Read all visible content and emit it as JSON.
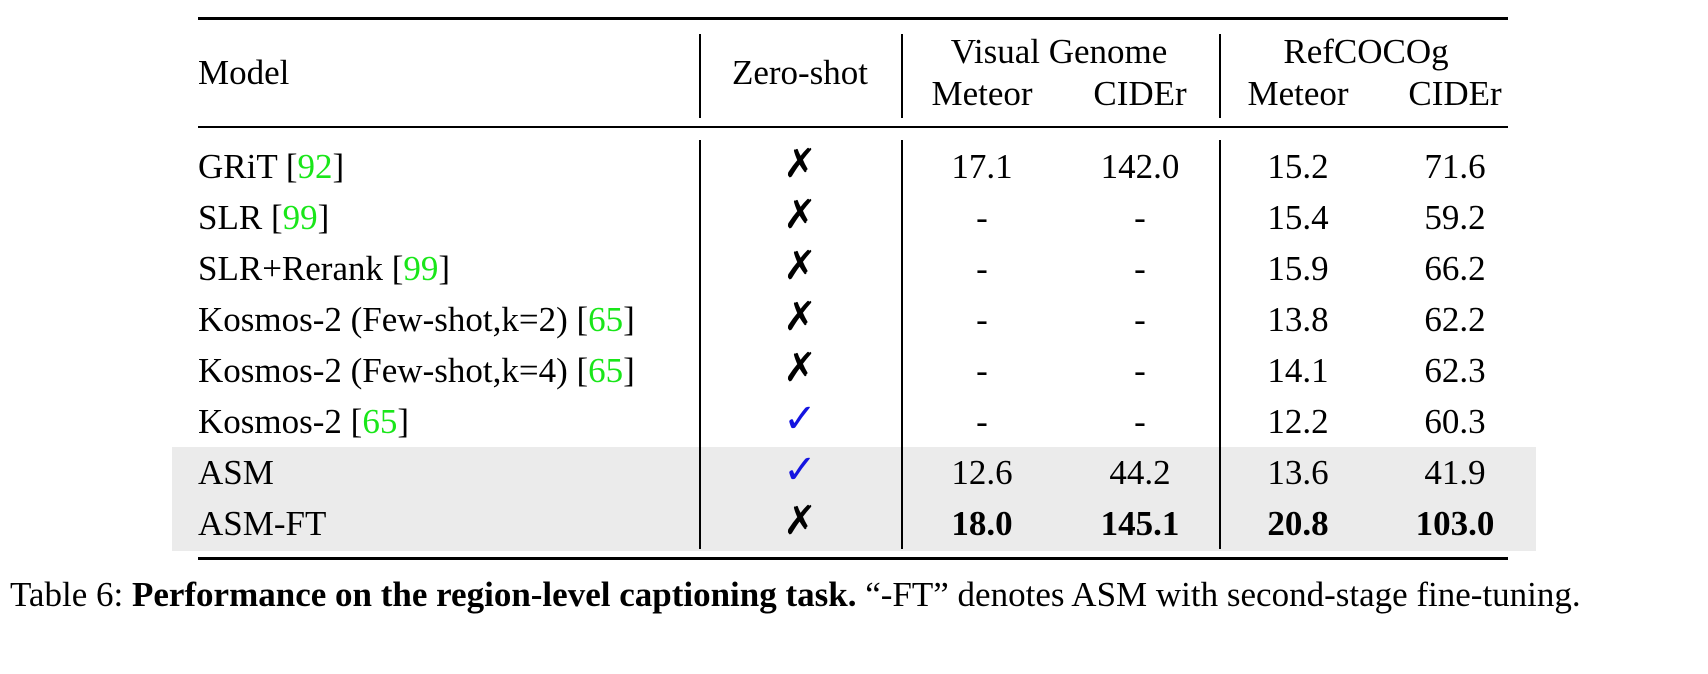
{
  "header": {
    "model": "Model",
    "zero_shot": "Zero-shot",
    "group_vg": "Visual Genome",
    "group_ref": "RefCOCOg",
    "meteor_vg": "Meteor",
    "cider_vg": "CIDEr",
    "meteor_ref": "Meteor",
    "cider_ref": "CIDEr"
  },
  "rows": [
    {
      "model": "GRiT [",
      "cite": "92",
      "close": "]",
      "zs": "✗",
      "vg_meteor": "17.1",
      "vg_cider": "142.0",
      "ref_meteor": "15.2",
      "ref_cider": "71.6"
    },
    {
      "model": "SLR [",
      "cite": "99",
      "close": "]",
      "zs": "✗",
      "vg_meteor": "-",
      "vg_cider": "-",
      "ref_meteor": "15.4",
      "ref_cider": "59.2"
    },
    {
      "model": "SLR+Rerank [",
      "cite": "99",
      "close": "]",
      "zs": "✗",
      "vg_meteor": "-",
      "vg_cider": "-",
      "ref_meteor": "15.9",
      "ref_cider": "66.2"
    },
    {
      "model": "Kosmos-2 (Few-shot,k=2) [",
      "cite": "65",
      "close": "]",
      "zs": "✗",
      "vg_meteor": "-",
      "vg_cider": "-",
      "ref_meteor": "13.8",
      "ref_cider": "62.2"
    },
    {
      "model": "Kosmos-2 (Few-shot,k=4) [",
      "cite": "65",
      "close": "]",
      "zs": "✗",
      "vg_meteor": "-",
      "vg_cider": "-",
      "ref_meteor": "14.1",
      "ref_cider": "62.3"
    },
    {
      "model": "Kosmos-2 [",
      "cite": "65",
      "close": "]",
      "zs": "✓",
      "vg_meteor": "-",
      "vg_cider": "-",
      "ref_meteor": "12.2",
      "ref_cider": "60.3"
    },
    {
      "model": "ASM",
      "cite": "",
      "close": "",
      "zs": "✓",
      "vg_meteor": "12.6",
      "vg_cider": "44.2",
      "ref_meteor": "13.6",
      "ref_cider": "41.9"
    },
    {
      "model": "ASM-FT",
      "cite": "",
      "close": "",
      "zs": "✗",
      "vg_meteor": "18.0",
      "vg_cider": "145.1",
      "ref_meteor": "20.8",
      "ref_cider": "103.0"
    }
  ],
  "caption": {
    "label": "Table 6: ",
    "bold": "Performance on the region-level captioning task.",
    "rest": " “-FT” denotes ASM with second-stage fine-tuning."
  }
}
